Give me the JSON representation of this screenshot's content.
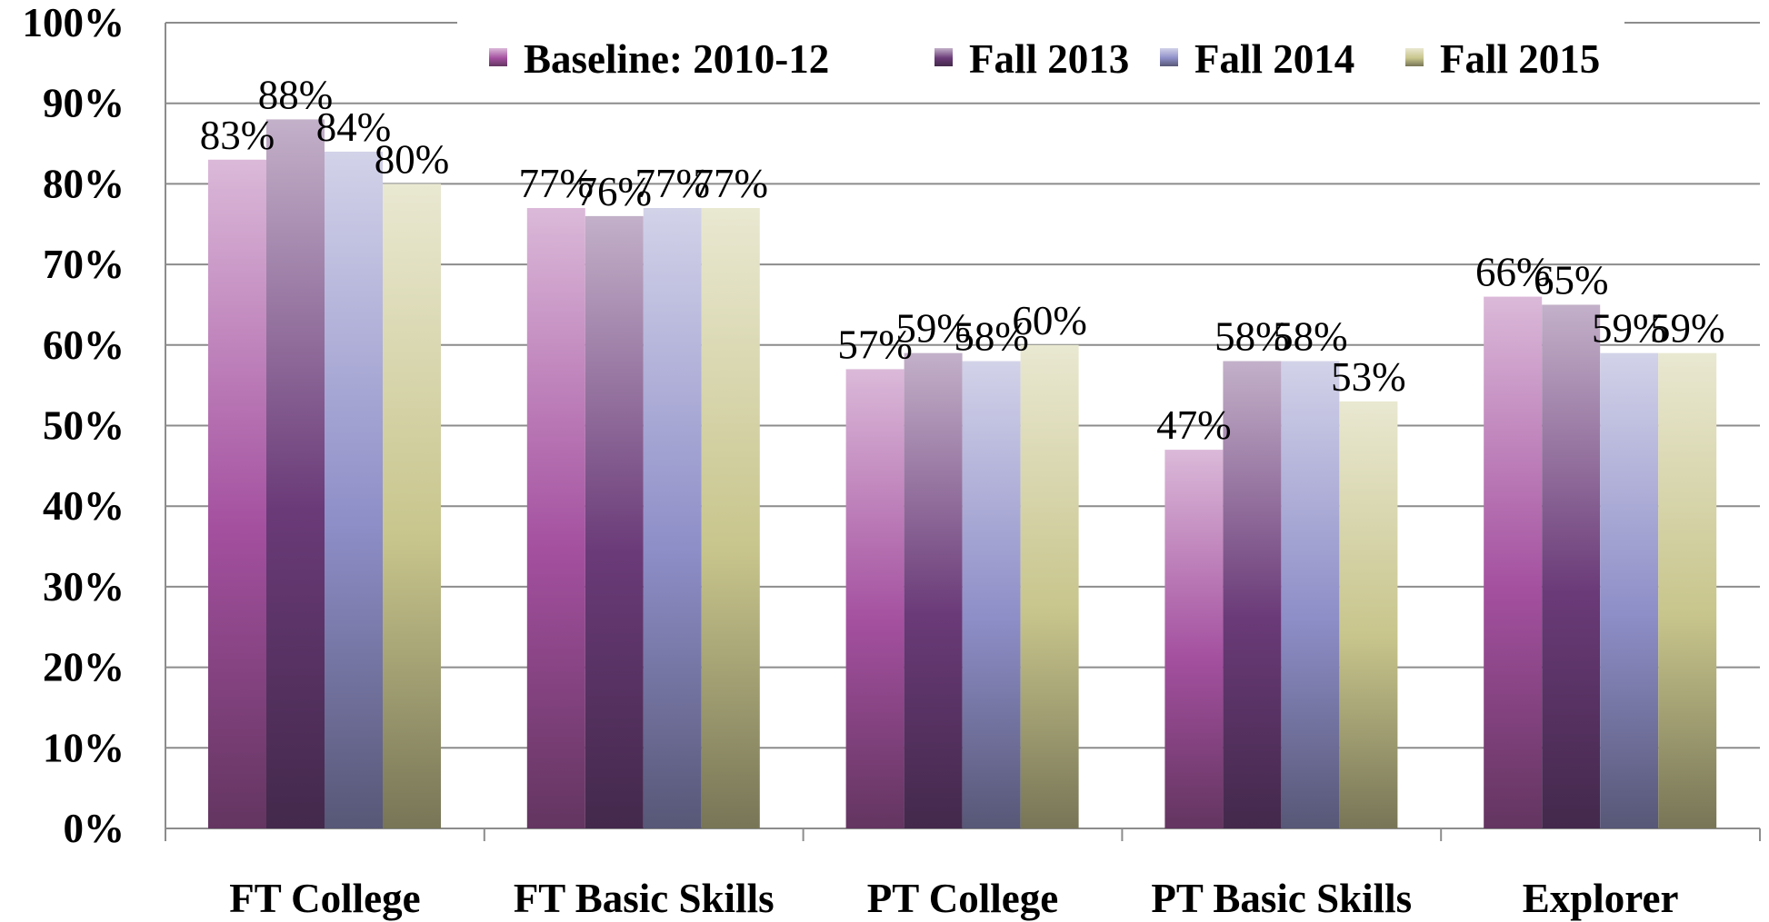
{
  "chart_data": {
    "type": "bar",
    "categories": [
      "FT College",
      "FT Basic Skills",
      "PT College",
      "PT Basic Skills",
      "Explorer"
    ],
    "series": [
      {
        "name": "Baseline: 2010-12",
        "color": "#a4509f",
        "values": [
          83,
          77,
          57,
          47,
          66
        ],
        "value_labels": [
          "83%",
          "77%",
          "57%",
          "47%",
          "66%"
        ]
      },
      {
        "name": "Fall 2013",
        "color": "#6a3a78",
        "values": [
          88,
          76,
          59,
          58,
          65
        ],
        "value_labels": [
          "88%",
          "76%",
          "59%",
          "58%",
          "65%"
        ]
      },
      {
        "name": "Fall 2014",
        "color": "#8e8ec8",
        "values": [
          84,
          77,
          58,
          58,
          59
        ],
        "value_labels": [
          "84%",
          "77%",
          "58%",
          "58%",
          "59%"
        ]
      },
      {
        "name": "Fall 2015",
        "color": "#c8c58c",
        "values": [
          80,
          77,
          60,
          53,
          59
        ],
        "value_labels": [
          "80%",
          "77%",
          "60%",
          "53%",
          "59%"
        ]
      }
    ],
    "ylim": [
      0,
      100
    ],
    "yticks": [
      {
        "value": 0,
        "label": "0%"
      },
      {
        "value": 10,
        "label": "10%"
      },
      {
        "value": 20,
        "label": "20%"
      },
      {
        "value": 30,
        "label": "30%"
      },
      {
        "value": 40,
        "label": "40%"
      },
      {
        "value": 50,
        "label": "50%"
      },
      {
        "value": 60,
        "label": "60%"
      },
      {
        "value": 70,
        "label": "70%"
      },
      {
        "value": 80,
        "label": "80%"
      },
      {
        "value": 90,
        "label": "90%"
      },
      {
        "value": 100,
        "label": "100%"
      }
    ],
    "grid": true,
    "legend": "top"
  }
}
